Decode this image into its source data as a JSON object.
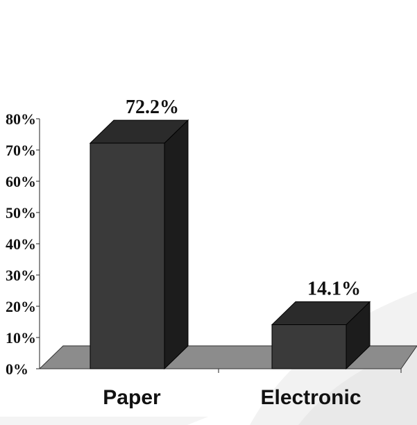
{
  "chart_data": {
    "type": "bar",
    "categories": [
      "Paper",
      "Electronic"
    ],
    "values": [
      72.2,
      14.1
    ],
    "data_labels": [
      "72.2%",
      "14.1%"
    ],
    "y_ticks": [
      "0%",
      "10%",
      "20%",
      "30%",
      "40%",
      "50%",
      "60%",
      "70%",
      "80%"
    ],
    "ylim": [
      0,
      80
    ],
    "title": "",
    "xlabel": "",
    "ylabel": "",
    "grid": false,
    "legend": "none",
    "style": "3d",
    "colors": {
      "bar_front": "#3a3a3a",
      "bar_top": "#2b2b2b",
      "bar_side": "#1c1c1c",
      "floor": "#8c8c8c",
      "background": "#ffffff"
    }
  }
}
